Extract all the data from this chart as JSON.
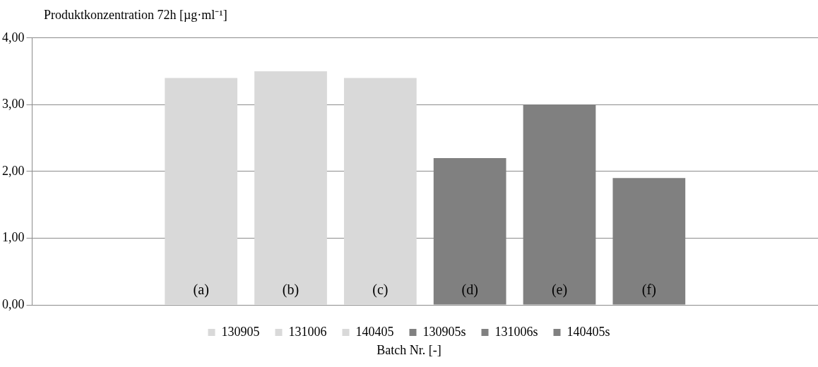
{
  "chart_data": {
    "type": "bar",
    "ylabel": "Produktkonzentration 72h [µg·ml⁻¹]",
    "xlabel": "Batch Nr. [-]",
    "categories": [
      null
    ],
    "series": [
      {
        "name": "130905",
        "color": "#d9d9d9",
        "values": [
          3.4
        ]
      },
      {
        "name": "131006",
        "color": "#d9d9d9",
        "values": [
          3.5
        ]
      },
      {
        "name": "140405",
        "color": "#d9d9d9",
        "values": [
          3.4
        ]
      },
      {
        "name": "130905s",
        "color": "#808080",
        "values": [
          2.2
        ]
      },
      {
        "name": "131006s",
        "color": "#808080",
        "values": [
          3.0
        ]
      },
      {
        "name": "140405s",
        "color": "#808080",
        "values": [
          1.9
        ]
      }
    ],
    "ylim": [
      0,
      4
    ],
    "yticks": [
      {
        "value": 0,
        "label": "0,00"
      },
      {
        "value": 1,
        "label": "1,00"
      },
      {
        "value": 2,
        "label": "2,00"
      },
      {
        "value": 3,
        "label": "3,00"
      },
      {
        "value": 4,
        "label": "4,00"
      }
    ],
    "annotations": [
      "(a)",
      "(b)",
      "(c)",
      "(d)",
      "(e)",
      "(f)"
    ],
    "grid": "y",
    "legend": "bottom",
    "tick_labels": "y"
  }
}
